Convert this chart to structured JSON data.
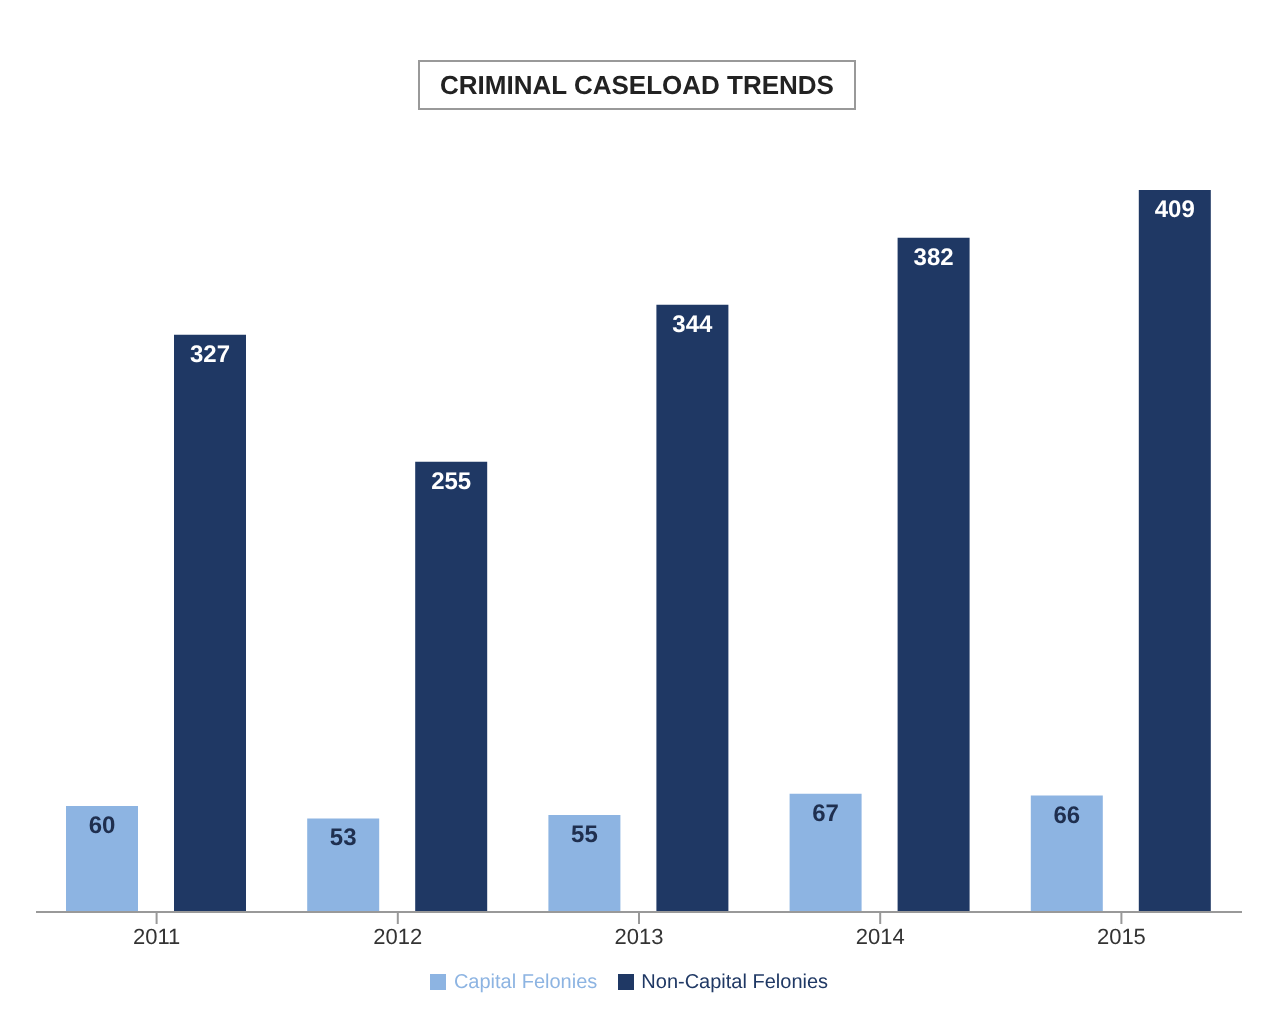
{
  "chart_data": {
    "type": "bar",
    "title": "CRIMINAL CASELOAD TRENDS",
    "categories": [
      "2011",
      "2012",
      "2013",
      "2014",
      "2015"
    ],
    "series": [
      {
        "name": "Capital Felonies",
        "color": "#8db4e2",
        "values": [
          60,
          53,
          55,
          67,
          66
        ]
      },
      {
        "name": "Non-Capital Felonies",
        "color": "#1f3864",
        "values": [
          327,
          255,
          344,
          382,
          409
        ]
      }
    ],
    "data_labels": true,
    "legend": "bottom",
    "grid": false
  }
}
